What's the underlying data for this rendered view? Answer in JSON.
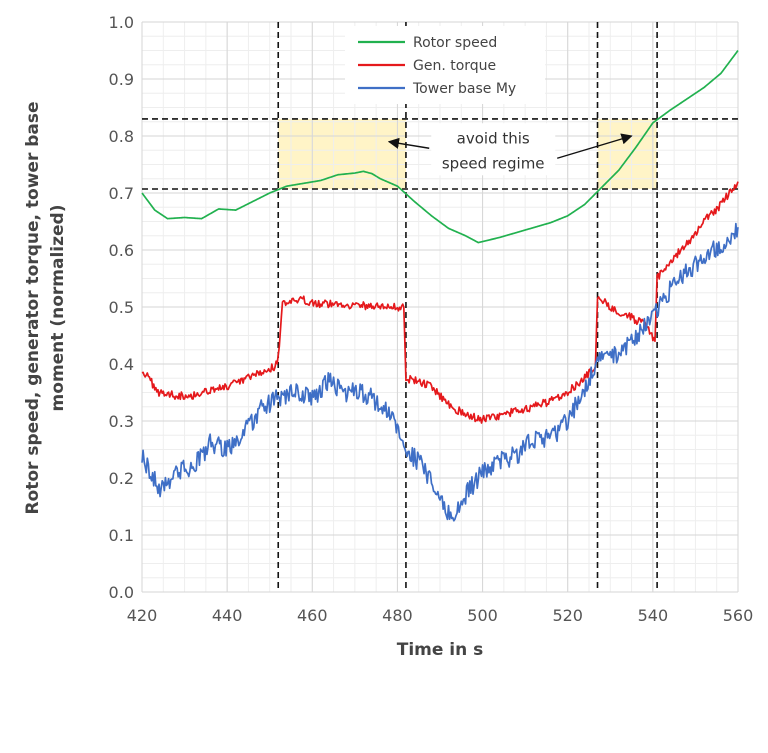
{
  "chart_data": {
    "type": "line",
    "title": "",
    "xlabel": "Time in s",
    "ylabel_lines": [
      "Rotor speed, generator torque, tower base",
      "moment (normalized)"
    ],
    "xlim": [
      420,
      560
    ],
    "ylim": [
      0.0,
      1.0
    ],
    "x_ticks": [
      420,
      440,
      460,
      480,
      500,
      520,
      540,
      560
    ],
    "y_ticks": [
      0.0,
      0.1,
      0.2,
      0.3,
      0.4,
      0.5,
      0.6,
      0.7,
      0.8,
      0.9,
      1.0
    ],
    "x_tick_labels": [
      "420",
      "440",
      "460",
      "480",
      "500",
      "520",
      "540",
      "560"
    ],
    "y_tick_labels": [
      "0.0",
      "0.1",
      "0.2",
      "0.3",
      "0.4",
      "0.5",
      "0.6",
      "0.7",
      "0.8",
      "0.9",
      "1.0"
    ],
    "grid": true,
    "legend_position": "top-center",
    "series": [
      {
        "name": "Rotor speed",
        "color": "#21b14f",
        "noise": 0.0,
        "points": [
          [
            420,
            0.7
          ],
          [
            423,
            0.67
          ],
          [
            426,
            0.655
          ],
          [
            430,
            0.657
          ],
          [
            434,
            0.655
          ],
          [
            438,
            0.672
          ],
          [
            442,
            0.67
          ],
          [
            446,
            0.685
          ],
          [
            450,
            0.7
          ],
          [
            454,
            0.712
          ],
          [
            458,
            0.717
          ],
          [
            462,
            0.722
          ],
          [
            466,
            0.732
          ],
          [
            470,
            0.735
          ],
          [
            472,
            0.738
          ],
          [
            474,
            0.734
          ],
          [
            476,
            0.725
          ],
          [
            480,
            0.712
          ],
          [
            484,
            0.685
          ],
          [
            488,
            0.66
          ],
          [
            492,
            0.638
          ],
          [
            496,
            0.625
          ],
          [
            499,
            0.613
          ],
          [
            504,
            0.622
          ],
          [
            510,
            0.635
          ],
          [
            516,
            0.648
          ],
          [
            520,
            0.66
          ],
          [
            524,
            0.68
          ],
          [
            528,
            0.71
          ],
          [
            532,
            0.74
          ],
          [
            536,
            0.78
          ],
          [
            540,
            0.823
          ],
          [
            544,
            0.845
          ],
          [
            548,
            0.865
          ],
          [
            552,
            0.885
          ],
          [
            556,
            0.91
          ],
          [
            560,
            0.95
          ]
        ]
      },
      {
        "name": "Gen. torque",
        "color": "#e5191c",
        "noise": 0.007,
        "points": [
          [
            420,
            0.39
          ],
          [
            424,
            0.35
          ],
          [
            428,
            0.345
          ],
          [
            432,
            0.345
          ],
          [
            436,
            0.355
          ],
          [
            440,
            0.36
          ],
          [
            444,
            0.372
          ],
          [
            448,
            0.385
          ],
          [
            451,
            0.395
          ],
          [
            452,
            0.41
          ],
          [
            453,
            0.505
          ],
          [
            458,
            0.512
          ],
          [
            462,
            0.506
          ],
          [
            466,
            0.505
          ],
          [
            470,
            0.503
          ],
          [
            474,
            0.502
          ],
          [
            478,
            0.5
          ],
          [
            481.5,
            0.5
          ],
          [
            482,
            0.375
          ],
          [
            485,
            0.37
          ],
          [
            488,
            0.36
          ],
          [
            492,
            0.33
          ],
          [
            496,
            0.31
          ],
          [
            500,
            0.303
          ],
          [
            504,
            0.308
          ],
          [
            508,
            0.318
          ],
          [
            512,
            0.325
          ],
          [
            516,
            0.335
          ],
          [
            520,
            0.352
          ],
          [
            524,
            0.375
          ],
          [
            526.5,
            0.395
          ],
          [
            527,
            0.52
          ],
          [
            530,
            0.5
          ],
          [
            534,
            0.485
          ],
          [
            538,
            0.47
          ],
          [
            540.5,
            0.44
          ],
          [
            541,
            0.55
          ],
          [
            544,
            0.58
          ],
          [
            548,
            0.61
          ],
          [
            552,
            0.65
          ],
          [
            556,
            0.68
          ],
          [
            560,
            0.72
          ]
        ]
      },
      {
        "name": "Tower base My",
        "color": "#3f6fc6",
        "noise": 0.017,
        "points": [
          [
            420,
            0.24
          ],
          [
            424,
            0.18
          ],
          [
            428,
            0.21
          ],
          [
            432,
            0.22
          ],
          [
            436,
            0.26
          ],
          [
            440,
            0.25
          ],
          [
            444,
            0.28
          ],
          [
            448,
            0.32
          ],
          [
            452,
            0.34
          ],
          [
            456,
            0.35
          ],
          [
            460,
            0.34
          ],
          [
            464,
            0.37
          ],
          [
            468,
            0.35
          ],
          [
            472,
            0.35
          ],
          [
            476,
            0.33
          ],
          [
            480,
            0.29
          ],
          [
            482,
            0.25
          ],
          [
            486,
            0.22
          ],
          [
            490,
            0.16
          ],
          [
            493,
            0.13
          ],
          [
            496,
            0.17
          ],
          [
            500,
            0.21
          ],
          [
            504,
            0.23
          ],
          [
            508,
            0.24
          ],
          [
            512,
            0.27
          ],
          [
            516,
            0.27
          ],
          [
            520,
            0.3
          ],
          [
            524,
            0.36
          ],
          [
            528,
            0.41
          ],
          [
            532,
            0.42
          ],
          [
            536,
            0.45
          ],
          [
            540,
            0.48
          ],
          [
            544,
            0.53
          ],
          [
            548,
            0.56
          ],
          [
            552,
            0.59
          ],
          [
            556,
            0.61
          ],
          [
            560,
            0.64
          ]
        ]
      }
    ],
    "reference_lines": {
      "horizontal": [
        0.707,
        0.83
      ],
      "vertical": [
        452,
        482,
        527,
        541
      ]
    },
    "highlight_regions": [
      {
        "x": [
          452,
          482
        ],
        "y": [
          0.707,
          0.83
        ],
        "color": "#fff4c7"
      },
      {
        "x": [
          527,
          541
        ],
        "y": [
          0.707,
          0.83
        ],
        "color": "#fff4c7"
      }
    ],
    "annotation": {
      "lines": [
        "avoid this",
        "speed regime"
      ],
      "anchor_x": 502.5,
      "anchor_y": 0.775,
      "arrow_targets": [
        [
          478,
          0.79
        ],
        [
          535,
          0.8
        ]
      ]
    }
  }
}
